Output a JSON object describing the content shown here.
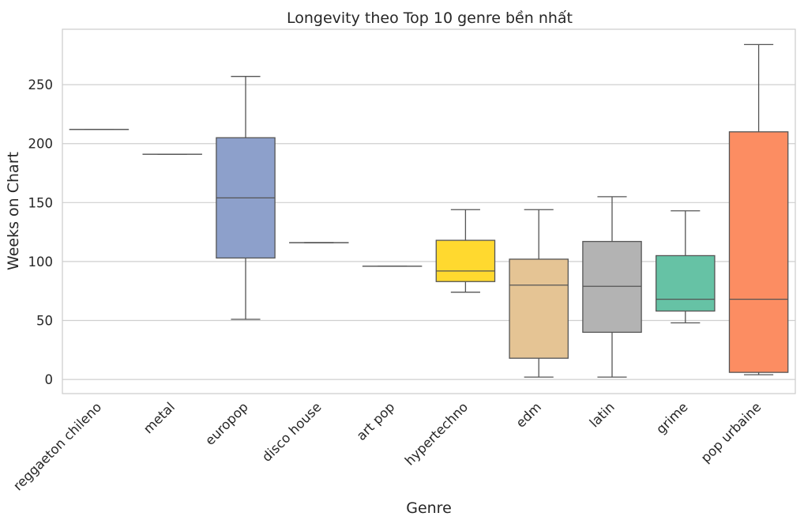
{
  "chart_data": {
    "type": "box",
    "title": "Longevity theo Top 10 genre bền nhất",
    "xlabel": "Genre",
    "ylabel": "Weeks on Chart",
    "ylim": [
      -12,
      297
    ],
    "yticks": [
      0,
      50,
      100,
      150,
      200,
      250
    ],
    "grid": "horizontal",
    "categories": [
      "reggaeton chileno",
      "metal",
      "europop",
      "disco house",
      "art pop",
      "hypertechno",
      "edm",
      "latin",
      "grime",
      "pop urbaine"
    ],
    "colors": [
      "#8da0cb",
      "#8da0cb",
      "#8da0cb",
      "#8da0cb",
      "#8da0cb",
      "#ffd92f",
      "#e5c494",
      "#b3b3b3",
      "#66c2a5",
      "#fc8d62"
    ],
    "boxes": [
      {
        "min": 212,
        "q1": 212,
        "median": 212,
        "q3": 212,
        "max": 212
      },
      {
        "min": 191,
        "q1": 191,
        "median": 191,
        "q3": 191,
        "max": 191
      },
      {
        "min": 51,
        "q1": 103,
        "median": 154,
        "q3": 205,
        "max": 257
      },
      {
        "min": 116,
        "q1": 116,
        "median": 116,
        "q3": 116,
        "max": 116
      },
      {
        "min": 96,
        "q1": 96,
        "median": 96,
        "q3": 96,
        "max": 96
      },
      {
        "min": 74,
        "q1": 83,
        "median": 92,
        "q3": 118,
        "max": 144
      },
      {
        "min": 2,
        "q1": 18,
        "median": 80,
        "q3": 102,
        "max": 144
      },
      {
        "min": 2,
        "q1": 40,
        "median": 79,
        "q3": 117,
        "max": 155
      },
      {
        "min": 48,
        "q1": 58,
        "median": 68,
        "q3": 105,
        "max": 143
      },
      {
        "min": 4,
        "q1": 6,
        "median": 68,
        "q3": 210,
        "max": 284
      }
    ]
  }
}
